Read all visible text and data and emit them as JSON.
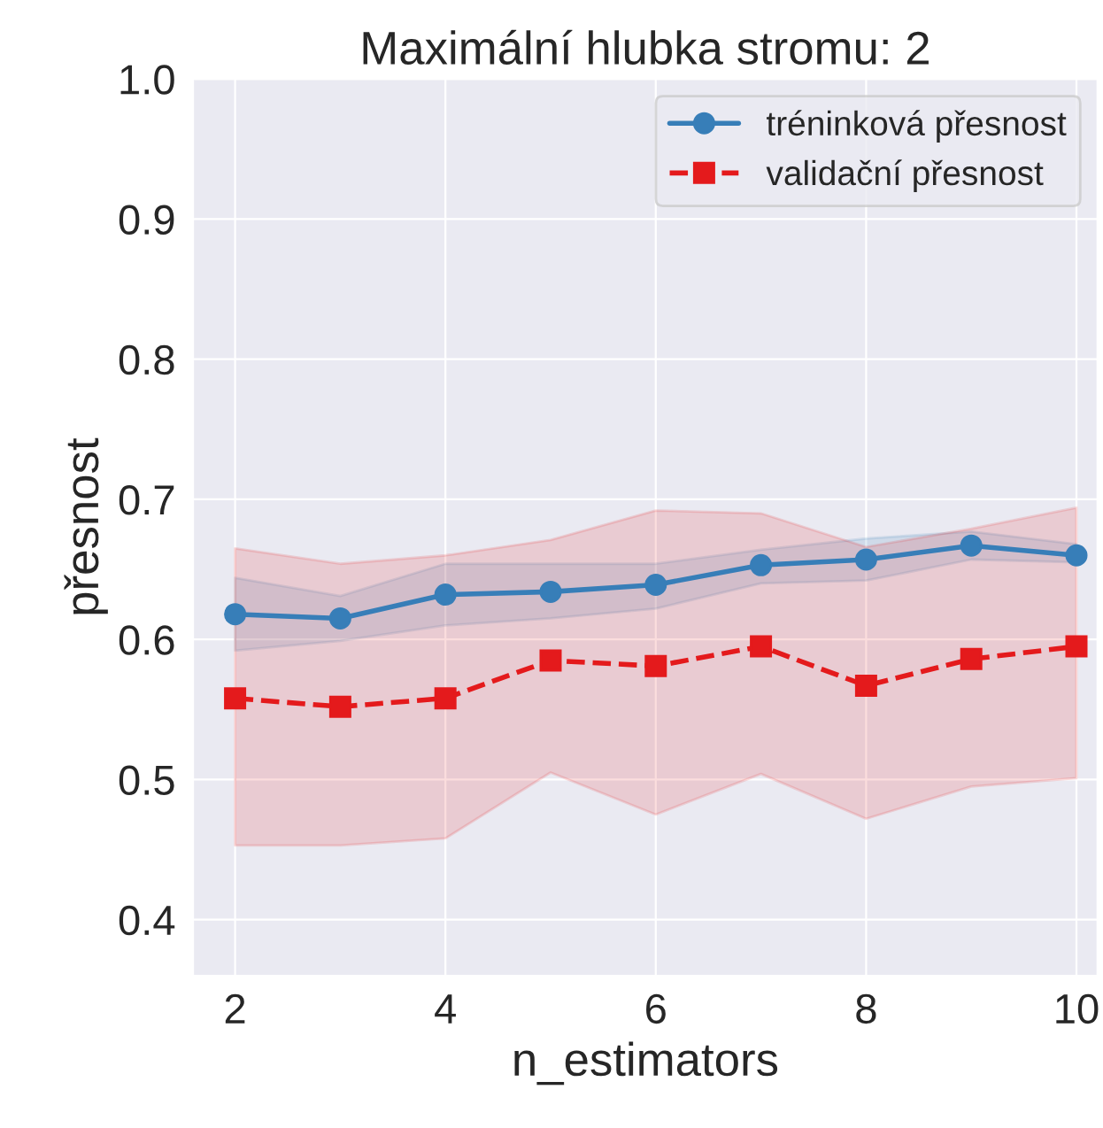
{
  "chart_data": {
    "type": "line",
    "title": "Maximální hlubka stromu: 2",
    "xlabel": "n_estimators",
    "ylabel": "přesnost",
    "x": [
      2,
      3,
      4,
      5,
      6,
      7,
      8,
      9,
      10
    ],
    "series": [
      {
        "name": "tréninková přesnost",
        "color": "#377eb8",
        "marker": "circle",
        "line_style": "solid",
        "values": [
          0.618,
          0.615,
          0.632,
          0.634,
          0.639,
          0.653,
          0.657,
          0.667,
          0.66
        ],
        "lower": [
          0.592,
          0.599,
          0.61,
          0.615,
          0.622,
          0.64,
          0.642,
          0.657,
          0.655
        ],
        "upper": [
          0.644,
          0.631,
          0.654,
          0.654,
          0.654,
          0.664,
          0.672,
          0.677,
          0.668
        ]
      },
      {
        "name": "validační přesnost",
        "color": "#e41a1c",
        "marker": "square",
        "line_style": "dashed",
        "values": [
          0.558,
          0.552,
          0.558,
          0.585,
          0.581,
          0.595,
          0.567,
          0.586,
          0.595
        ],
        "lower": [
          0.453,
          0.453,
          0.458,
          0.505,
          0.475,
          0.504,
          0.472,
          0.495,
          0.501
        ],
        "upper": [
          0.665,
          0.654,
          0.66,
          0.671,
          0.692,
          0.69,
          0.666,
          0.679,
          0.694
        ]
      }
    ],
    "xlim": [
      1.6,
      10.2
    ],
    "ylim": [
      0.36,
      1.0
    ],
    "xticks": [
      2,
      4,
      6,
      8,
      10
    ],
    "yticks": [
      0.4,
      0.5,
      0.6,
      0.7,
      0.8,
      0.9,
      {
        "value": 1.0,
        "label": "1.0"
      }
    ],
    "grid": true,
    "legend": "top right"
  }
}
